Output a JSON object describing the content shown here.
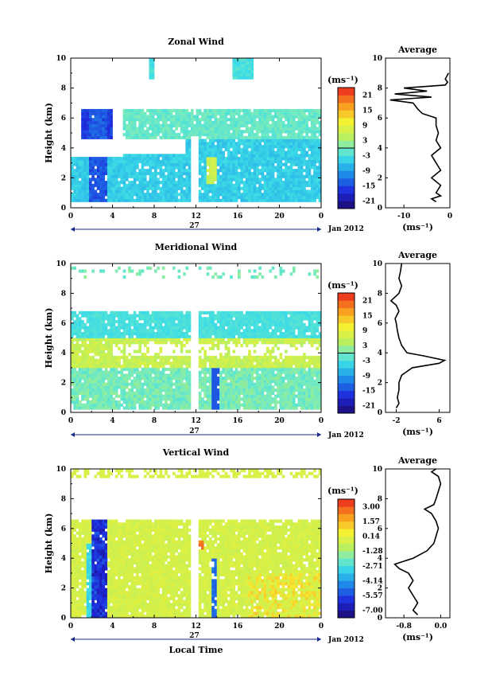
{
  "chart_data": [
    {
      "type": "heatmap",
      "title": "Zonal Wind",
      "ylabel": "Height (km)",
      "xlabel": "",
      "x_ticks": [
        "0",
        "4",
        "8",
        "12",
        "16",
        "20",
        "0"
      ],
      "y_ticks": [
        "0",
        "2",
        "4",
        "6",
        "8",
        "10"
      ],
      "xlim": [
        0,
        24
      ],
      "ylim": [
        0,
        10
      ],
      "day_label": "27",
      "date_label": "Jan 2012",
      "colorbar": {
        "unit": "(ms⁻¹)",
        "ticks": [
          "21",
          "15",
          "9",
          "3",
          "-3",
          "-9",
          "-15",
          "-21"
        ],
        "range": [
          -24,
          24
        ]
      },
      "average_profile": {
        "title": "Average",
        "unit": "(ms⁻¹)",
        "x_ticks": [
          "-10",
          "0"
        ],
        "y_ticks": [
          "0",
          "2",
          "4",
          "6",
          "8",
          "10"
        ],
        "xlim": [
          -14,
          0
        ],
        "heights": [
          0.4,
          0.6,
          0.8,
          1.0,
          1.5,
          2.0,
          2.5,
          3.0,
          3.5,
          4.0,
          4.5,
          5.0,
          5.5,
          6.0,
          6.3,
          6.6,
          7.0,
          7.2,
          7.4,
          7.6,
          7.8,
          8.0,
          8.2,
          8.4,
          8.6,
          9.0
        ],
        "values": [
          -3,
          -4,
          -2,
          -3,
          -2,
          -4,
          -2,
          -3,
          -4,
          -2,
          -3,
          -2.5,
          -3,
          -3,
          -6,
          -7,
          -8,
          -13,
          -4,
          -12,
          -5,
          -10,
          -1,
          -0.5,
          -1,
          -0.3
        ]
      }
    },
    {
      "type": "heatmap",
      "title": "Meridional Wind",
      "ylabel": "Height (km)",
      "xlabel": "",
      "x_ticks": [
        "0",
        "4",
        "8",
        "12",
        "16",
        "20",
        "0"
      ],
      "y_ticks": [
        "0",
        "2",
        "4",
        "6",
        "8",
        "10"
      ],
      "xlim": [
        0,
        24
      ],
      "ylim": [
        0,
        10
      ],
      "day_label": "27",
      "date_label": "Jan 2012",
      "colorbar": {
        "unit": "(ms⁻¹)",
        "ticks": [
          "21",
          "15",
          "9",
          "3",
          "-3",
          "-9",
          "-15",
          "-21"
        ],
        "range": [
          -24,
          24
        ]
      },
      "average_profile": {
        "title": "Average",
        "unit": "(ms⁻¹)",
        "x_ticks": [
          "-2",
          "6"
        ],
        "y_ticks": [
          "0",
          "2",
          "4",
          "6",
          "8",
          "10"
        ],
        "xlim": [
          -4,
          8
        ],
        "heights": [
          0.3,
          0.6,
          1.0,
          1.5,
          2.0,
          2.5,
          3.0,
          3.3,
          3.5,
          3.8,
          4.0,
          4.5,
          5.0,
          5.5,
          6.0,
          6.3,
          6.8,
          7.2,
          7.5,
          8.0,
          8.5,
          9.0,
          9.5,
          10.0
        ],
        "values": [
          -2,
          -1.5,
          -1.8,
          -1.5,
          -1.5,
          -1,
          1,
          6,
          7,
          3,
          0,
          -1,
          -1.5,
          -1.8,
          -2,
          -2.2,
          -1.5,
          -2,
          -3,
          -1.5,
          -1,
          -1.5,
          -1.2,
          -1
        ]
      }
    },
    {
      "type": "heatmap",
      "title": "Vertical Wind",
      "ylabel": "Height (km)",
      "xlabel": "Local Time",
      "x_ticks": [
        "0",
        "4",
        "8",
        "12",
        "16",
        "20",
        "0"
      ],
      "y_ticks": [
        "0",
        "2",
        "4",
        "6",
        "8",
        "10"
      ],
      "xlim": [
        0,
        24
      ],
      "ylim": [
        0,
        10
      ],
      "day_label": "27",
      "date_label": "Jan 2012",
      "colorbar": {
        "unit": "(ms⁻¹)",
        "ticks": [
          "3.00",
          "1.57",
          "0.14",
          "-1.28",
          "-2.71",
          "-4.14",
          "-5.57",
          "-7.00"
        ],
        "range": [
          -7.7,
          3.7
        ]
      },
      "average_profile": {
        "title": "Average",
        "unit": "(ms⁻¹)",
        "x_ticks": [
          "-0.8",
          "0.0"
        ],
        "y_ticks": [
          "0",
          "2",
          "4",
          "6",
          "8",
          "10"
        ],
        "xlim": [
          -1.2,
          0.2
        ],
        "heights": [
          0.2,
          0.5,
          1.0,
          1.5,
          2.0,
          2.5,
          3.0,
          3.3,
          3.6,
          4.0,
          4.5,
          5.0,
          5.5,
          6.0,
          6.5,
          7.0,
          7.3,
          7.6,
          8.0,
          8.5,
          9.0,
          9.5,
          9.8,
          10.0
        ],
        "values": [
          -0.5,
          -0.6,
          -0.5,
          -0.6,
          -0.7,
          -0.6,
          -0.7,
          -0.9,
          -1.0,
          -0.6,
          -0.3,
          -0.15,
          -0.1,
          -0.05,
          -0.1,
          -0.2,
          -0.35,
          -0.15,
          -0.1,
          -0.05,
          0.0,
          -0.05,
          -0.2,
          -0.1
        ]
      }
    }
  ]
}
